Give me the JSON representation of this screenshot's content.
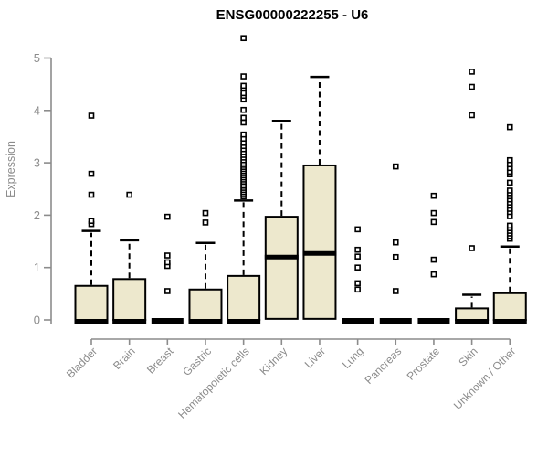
{
  "chart_data": {
    "type": "boxplot",
    "title": "ENSG00000222255 - U6",
    "xlabel": "",
    "ylabel": "Expression",
    "ylim": [
      0,
      5.45
    ],
    "yticks": [
      0,
      1,
      2,
      3,
      4,
      5
    ],
    "grid": false,
    "legend": "none",
    "categories": [
      "Bladder",
      "Brain",
      "Breast",
      "Gastric",
      "Hematopoietic cells",
      "Kidney",
      "Liver",
      "Lung",
      "Pancreas",
      "Prostate",
      "Skin",
      "Unknown / Other"
    ],
    "boxes": [
      {
        "label": "Bladder",
        "q1": 0,
        "median": 0.03,
        "q3": 0.65,
        "whisker_low": 0,
        "whisker_high": 1.7,
        "outliers": [
          1.83,
          1.89,
          2.39,
          2.79,
          3.9
        ]
      },
      {
        "label": "Brain",
        "q1": 0,
        "median": 0.03,
        "q3": 0.78,
        "whisker_low": 0,
        "whisker_high": 1.52,
        "outliers": [
          2.39
        ]
      },
      {
        "label": "Breast",
        "q1": 0,
        "median": 0.03,
        "q3": 0.03,
        "whisker_low": 0,
        "whisker_high": 0.03,
        "outliers": [
          0.55,
          1.03,
          1.1,
          1.23,
          1.97
        ]
      },
      {
        "label": "Gastric",
        "q1": 0,
        "median": 0.03,
        "q3": 0.58,
        "whisker_low": 0,
        "whisker_high": 1.47,
        "outliers": [
          1.86,
          2.04
        ]
      },
      {
        "label": "Hematopoietic cells",
        "q1": 0,
        "median": 0.03,
        "q3": 0.84,
        "whisker_low": 0,
        "whisker_high": 2.28,
        "outliers": [
          2.36,
          2.4,
          2.44,
          2.48,
          2.52,
          2.56,
          2.6,
          2.64,
          2.68,
          2.72,
          2.76,
          2.8,
          2.84,
          2.88,
          2.92,
          2.96,
          3.0,
          3.05,
          3.1,
          3.15,
          3.2,
          3.26,
          3.32,
          3.38,
          3.46,
          3.54,
          3.77,
          3.86,
          4.01,
          4.21,
          4.28,
          4.33,
          4.42,
          4.47,
          4.65,
          5.38
        ]
      },
      {
        "label": "Kidney",
        "q1": 0.02,
        "median": 1.2,
        "q3": 1.97,
        "whisker_low": 0,
        "whisker_high": 3.8,
        "outliers": []
      },
      {
        "label": "Liver",
        "q1": 0.02,
        "median": 1.27,
        "q3": 2.95,
        "whisker_low": 0,
        "whisker_high": 4.64,
        "outliers": []
      },
      {
        "label": "Lung",
        "q1": 0,
        "median": 0.03,
        "q3": 0.03,
        "whisker_low": 0,
        "whisker_high": 0.03,
        "outliers": [
          0.58,
          0.7,
          1.0,
          1.21,
          1.34,
          1.73
        ]
      },
      {
        "label": "Pancreas",
        "q1": 0,
        "median": 0.03,
        "q3": 0.03,
        "whisker_low": 0,
        "whisker_high": 0.03,
        "outliers": [
          0.55,
          1.2,
          1.48,
          2.93
        ]
      },
      {
        "label": "Prostate",
        "q1": 0,
        "median": 0.03,
        "q3": 0.03,
        "whisker_low": 0,
        "whisker_high": 0.03,
        "outliers": [
          0.87,
          1.15,
          1.87,
          2.04,
          2.37
        ]
      },
      {
        "label": "Skin",
        "q1": 0,
        "median": 0.03,
        "q3": 0.22,
        "whisker_low": 0,
        "whisker_high": 0.48,
        "outliers": [
          1.37,
          3.91,
          4.45,
          4.74
        ]
      },
      {
        "label": "Unknown / Other",
        "q1": 0,
        "median": 0.03,
        "q3": 0.51,
        "whisker_low": 0,
        "whisker_high": 1.4,
        "outliers": [
          1.55,
          1.6,
          1.65,
          1.7,
          1.75,
          1.8,
          1.98,
          2.06,
          2.12,
          2.18,
          2.24,
          2.3,
          2.36,
          2.42,
          2.47,
          2.62,
          2.78,
          2.83,
          2.9,
          2.97,
          3.05,
          3.68
        ]
      }
    ]
  },
  "style": {
    "box_fill": "#EDE8CD",
    "box_stroke": "#000000",
    "median_color": "#000000",
    "whisker_color": "#000000",
    "axis_color": "#8C8C8C",
    "tick_label_color": "#8B8B8B",
    "title_color": "#000000",
    "background": "#FFFFFF"
  }
}
